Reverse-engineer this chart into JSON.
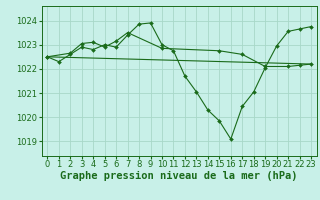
{
  "bg_color": "#c8f0e8",
  "grid_color": "#a8d8c8",
  "line_color": "#1a6b1a",
  "marker_color": "#1a6b1a",
  "xlabel": "Graphe pression niveau de la mer (hPa)",
  "xlabel_fontsize": 7.5,
  "tick_fontsize": 6.0,
  "ytick_labels": [
    "1019",
    "1020",
    "1021",
    "1022",
    "1023",
    "1024"
  ],
  "yticks": [
    1019,
    1020,
    1021,
    1022,
    1023,
    1024
  ],
  "xticks": [
    0,
    1,
    2,
    3,
    4,
    5,
    6,
    7,
    8,
    9,
    10,
    11,
    12,
    13,
    14,
    15,
    16,
    17,
    18,
    19,
    20,
    21,
    22,
    23
  ],
  "ylim": [
    1018.4,
    1024.6
  ],
  "xlim": [
    -0.5,
    23.5
  ],
  "series": [
    {
      "x": [
        0,
        1,
        2,
        3,
        4,
        5,
        6,
        7,
        8,
        9,
        10,
        11,
        12,
        13,
        14,
        15,
        16,
        17,
        18,
        19,
        20,
        21,
        22,
        23
      ],
      "y": [
        1022.5,
        1022.3,
        1022.6,
        1022.9,
        1022.8,
        1023.0,
        1022.9,
        1023.4,
        1023.85,
        1023.9,
        1023.0,
        1022.75,
        1021.7,
        1021.05,
        1020.3,
        1019.85,
        1019.1,
        1020.45,
        1021.05,
        1022.05,
        1022.95,
        1023.55,
        1023.65,
        1023.75
      ]
    },
    {
      "x": [
        0,
        2,
        3,
        4,
        5,
        6,
        7,
        10,
        15,
        17,
        19,
        21,
        22,
        23
      ],
      "y": [
        1022.5,
        1022.65,
        1023.05,
        1023.1,
        1022.9,
        1023.15,
        1023.5,
        1022.85,
        1022.75,
        1022.6,
        1022.1,
        1022.1,
        1022.15,
        1022.2
      ]
    },
    {
      "x": [
        0,
        23
      ],
      "y": [
        1022.5,
        1022.2
      ]
    }
  ]
}
